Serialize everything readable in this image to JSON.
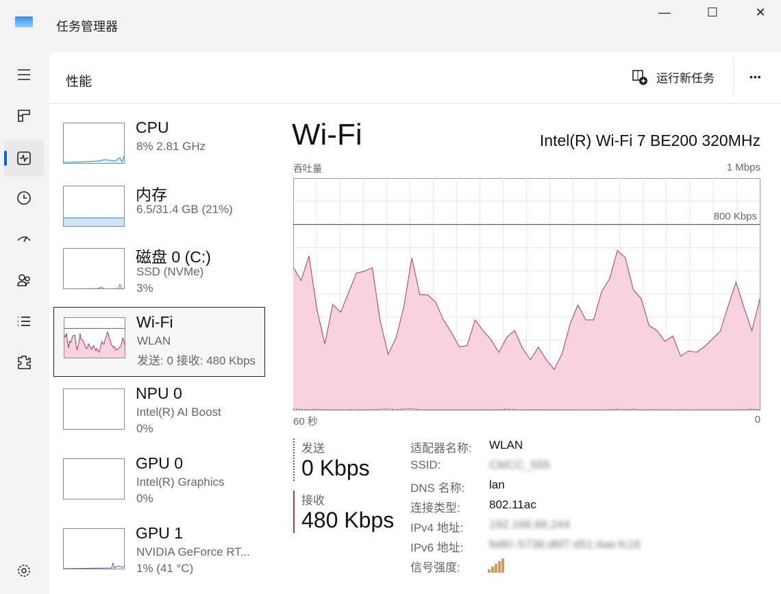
{
  "app": {
    "title": "任务管理器"
  },
  "header": {
    "title": "性能",
    "run_task": "运行新任务",
    "more": "•••"
  },
  "nav": [
    "menu-icon",
    "processes-icon",
    "performance-icon",
    "history-icon",
    "startup-icon",
    "users-icon",
    "details-icon",
    "services-icon",
    "settings-icon"
  ],
  "sidebar": {
    "items": [
      {
        "name": "CPU",
        "line1": "8%  2.81 GHz",
        "line2": "",
        "color": "#1f8fb0"
      },
      {
        "name": "内存",
        "line1": "6.5/31.4 GB (21%)",
        "line2": "",
        "color": "#3b7bbf"
      },
      {
        "name": "磁盘 0 (C:)",
        "line1": "SSD (NVMe)",
        "line2": "3%",
        "color": "#5a9a20"
      },
      {
        "name": "Wi-Fi",
        "line1": "WLAN",
        "line2": "发送: 0 接收: 480 Kbps",
        "color": "#a33a62"
      },
      {
        "name": "NPU 0",
        "line1": "Intel(R) AI Boost",
        "line2": "0%",
        "color": "#888"
      },
      {
        "name": "GPU 0",
        "line1": "Intel(R) Graphics",
        "line2": "0%",
        "color": "#888"
      },
      {
        "name": "GPU 1",
        "line1": "NVIDIA GeForce RT...",
        "line2": "1% (41 °C)",
        "color": "#7a3fc4"
      }
    ]
  },
  "main": {
    "title": "Wi-Fi",
    "device": "Intel(R) Wi-Fi 7 BE200 320MHz",
    "send_label": "发送",
    "send_value": "0 Kbps",
    "recv_label": "接收",
    "recv_value": "480 Kbps",
    "details": [
      {
        "label": "适配器名称:",
        "value": "WLAN",
        "blur": false
      },
      {
        "label": "SSID:",
        "value": "CMCC_555",
        "blur": true
      },
      {
        "label": "DNS 名称:",
        "value": "lan",
        "blur": false
      },
      {
        "label": "连接类型:",
        "value": "802.11ac",
        "blur": false
      },
      {
        "label": "IPv4 地址:",
        "value": "192.168.68.244",
        "blur": true
      },
      {
        "label": "IPv6 地址:",
        "value": "fe80::5738:d6f7:d51:4ae:fc16",
        "blur": true
      },
      {
        "label": "信号强度:",
        "value": "",
        "blur": false
      }
    ],
    "signal_bars": 4
  },
  "chart_data": {
    "type": "area",
    "ylabel": "吞吐量",
    "ymax_label": "1 Mbps",
    "xlabel_left": "60 秒",
    "xlabel_right": "0",
    "ref_label": "800 Kbps",
    "ref_value": 800,
    "ylim": [
      0,
      1000
    ],
    "xlim": [
      60,
      0
    ],
    "grid": true,
    "series": [
      {
        "name": "接收",
        "color": "#a33a62",
        "fill": "#f8d3df",
        "values": [
          615,
          558,
          664,
          433,
          285,
          454,
          421,
          506,
          590,
          598,
          613,
          383,
          239,
          310,
          447,
          656,
          497,
          496,
          465,
          388,
          334,
          272,
          277,
          388,
          342,
          303,
          248,
          312,
          342,
          265,
          216,
          270,
          216,
          174,
          241,
          369,
          452,
          388,
          388,
          511,
          565,
          688,
          656,
          519,
          480,
          364,
          342,
          295,
          318,
          231,
          254,
          248,
          272,
          305,
          339,
          447,
          551,
          442,
          341,
          477
        ]
      },
      {
        "name": "发送",
        "color": "#a33a62",
        "dashed": true,
        "values": [
          3,
          2,
          0,
          3,
          0,
          0,
          0,
          0,
          0,
          0,
          0,
          3,
          4,
          0,
          4,
          5,
          0,
          0,
          0,
          0,
          0,
          0,
          0,
          0,
          0,
          0,
          0,
          3,
          0,
          0,
          0,
          0,
          0,
          0,
          0,
          0,
          0,
          0,
          0,
          0,
          0,
          3,
          0,
          3,
          0,
          0,
          0,
          0,
          0,
          0,
          0,
          0,
          0,
          0,
          0,
          0,
          0,
          0,
          3,
          0
        ]
      }
    ]
  }
}
